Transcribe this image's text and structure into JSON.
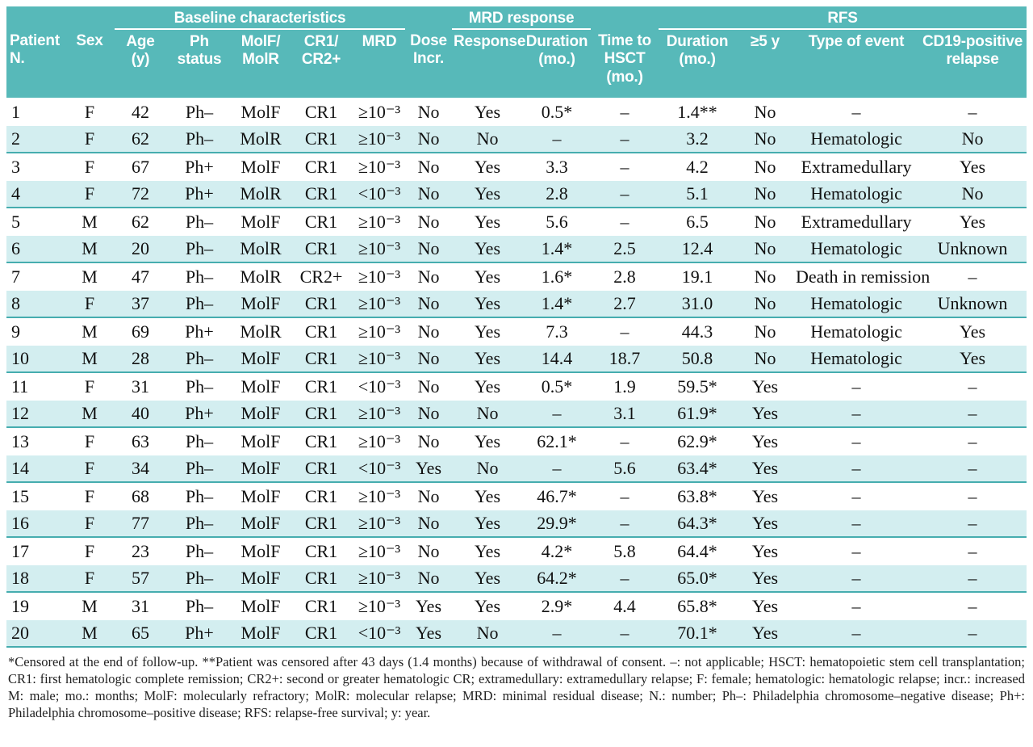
{
  "colors": {
    "header_teal": "#57b9b9",
    "row_tint": "#d3eef0",
    "divider_teal": "#46adaf",
    "header_text": "#ffffff"
  },
  "table": {
    "groups": {
      "baseline": "Baseline characteristics",
      "mrd": "MRD response",
      "rfs": "RFS"
    },
    "columns": [
      "Patient\nN.",
      "Sex",
      "Age\n(y)",
      "Ph\nstatus",
      "MolF/\nMolR",
      "CR1/\nCR2+",
      "MRD",
      "Dose\nIncr.",
      "Response",
      "Duration\n(mo.)",
      "Time to\nHSCT\n(mo.)",
      "Duration\n(mo.)",
      "≥5 y",
      "Type of event",
      "CD19-positive\nrelapse"
    ],
    "rows": [
      [
        "1",
        "F",
        "42",
        "Ph–",
        "MolF",
        "CR1",
        "≥10⁻³",
        "No",
        "Yes",
        "0.5*",
        "–",
        "1.4**",
        "No",
        "–",
        "–"
      ],
      [
        "2",
        "F",
        "62",
        "Ph–",
        "MolR",
        "CR1",
        "≥10⁻³",
        "No",
        "No",
        "–",
        "–",
        "3.2",
        "No",
        "Hematologic",
        "No"
      ],
      [
        "3",
        "F",
        "67",
        "Ph+",
        "MolF",
        "CR1",
        "≥10⁻³",
        "No",
        "Yes",
        "3.3",
        "–",
        "4.2",
        "No",
        "Extramedullary",
        "Yes"
      ],
      [
        "4",
        "F",
        "72",
        "Ph+",
        "MolR",
        "CR1",
        "<10⁻³",
        "No",
        "Yes",
        "2.8",
        "–",
        "5.1",
        "No",
        "Hematologic",
        "No"
      ],
      [
        "5",
        "M",
        "62",
        "Ph–",
        "MolF",
        "CR1",
        "≥10⁻³",
        "No",
        "Yes",
        "5.6",
        "–",
        "6.5",
        "No",
        "Extramedullary",
        "Yes"
      ],
      [
        "6",
        "M",
        "20",
        "Ph–",
        "MolR",
        "CR1",
        "≥10⁻³",
        "No",
        "Yes",
        "1.4*",
        "2.5",
        "12.4",
        "No",
        "Hematologic",
        "Unknown"
      ],
      [
        "7",
        "M",
        "47",
        "Ph–",
        "MolR",
        "CR2+",
        "≥10⁻³",
        "No",
        "Yes",
        "1.6*",
        "2.8",
        "19.1",
        "No",
        "Death in remission",
        "–"
      ],
      [
        "8",
        "F",
        "37",
        "Ph–",
        "MolF",
        "CR1",
        "≥10⁻³",
        "No",
        "Yes",
        "1.4*",
        "2.7",
        "31.0",
        "No",
        "Hematologic",
        "Unknown"
      ],
      [
        "9",
        "M",
        "69",
        "Ph+",
        "MolR",
        "CR1",
        "≥10⁻³",
        "No",
        "Yes",
        "7.3",
        "–",
        "44.3",
        "No",
        "Hematologic",
        "Yes"
      ],
      [
        "10",
        "M",
        "28",
        "Ph–",
        "MolF",
        "CR1",
        "≥10⁻³",
        "No",
        "Yes",
        "14.4",
        "18.7",
        "50.8",
        "No",
        "Hematologic",
        "Yes"
      ],
      [
        "11",
        "F",
        "31",
        "Ph–",
        "MolF",
        "CR1",
        "<10⁻³",
        "No",
        "Yes",
        "0.5*",
        "1.9",
        "59.5*",
        "Yes",
        "–",
        "–"
      ],
      [
        "12",
        "M",
        "40",
        "Ph+",
        "MolF",
        "CR1",
        "≥10⁻³",
        "No",
        "No",
        "–",
        "3.1",
        "61.9*",
        "Yes",
        "–",
        "–"
      ],
      [
        "13",
        "F",
        "63",
        "Ph–",
        "MolF",
        "CR1",
        "≥10⁻³",
        "No",
        "Yes",
        "62.1*",
        "–",
        "62.9*",
        "Yes",
        "–",
        "–"
      ],
      [
        "14",
        "F",
        "34",
        "Ph–",
        "MolF",
        "CR1",
        "<10⁻³",
        "Yes",
        "No",
        "–",
        "5.6",
        "63.4*",
        "Yes",
        "–",
        "–"
      ],
      [
        "15",
        "F",
        "68",
        "Ph–",
        "MolF",
        "CR1",
        "≥10⁻³",
        "No",
        "Yes",
        "46.7*",
        "–",
        "63.8*",
        "Yes",
        "–",
        "–"
      ],
      [
        "16",
        "F",
        "77",
        "Ph–",
        "MolF",
        "CR1",
        "≥10⁻³",
        "No",
        "Yes",
        "29.9*",
        "–",
        "64.3*",
        "Yes",
        "–",
        "–"
      ],
      [
        "17",
        "F",
        "23",
        "Ph–",
        "MolF",
        "CR1",
        "≥10⁻³",
        "No",
        "Yes",
        "4.2*",
        "5.8",
        "64.4*",
        "Yes",
        "–",
        "–"
      ],
      [
        "18",
        "F",
        "57",
        "Ph–",
        "MolF",
        "CR1",
        "≥10⁻³",
        "No",
        "Yes",
        "64.2*",
        "–",
        "65.0*",
        "Yes",
        "–",
        "–"
      ],
      [
        "19",
        "M",
        "31",
        "Ph–",
        "MolF",
        "CR1",
        "≥10⁻³",
        "Yes",
        "Yes",
        "2.9*",
        "4.4",
        "65.8*",
        "Yes",
        "–",
        "–"
      ],
      [
        "20",
        "M",
        "65",
        "Ph+",
        "MolF",
        "CR1",
        "<10⁻³",
        "Yes",
        "No",
        "–",
        "–",
        "70.1*",
        "Yes",
        "–",
        "–"
      ]
    ]
  },
  "footnote": "*Censored at the end of follow-up. **Patient was censored after 43 days (1.4 months) because of withdrawal of consent. –: not applicable; HSCT: hematopoietic stem cell transplantation; CR1: first hematologic complete remission; CR2+: second or greater hematologic CR; extramedullary: extramedullary relapse; F: female; hematologic: hematologic relapse; incr.: increased M: male; mo.: months; MolF: molecularly refractory; MolR: molecular relapse; MRD: minimal residual disease; N.: number; Ph–: Philadelphia chromosome–negative disease; Ph+: Philadelphia chromosome–positive disease; RFS: relapse-free survival; y: year."
}
